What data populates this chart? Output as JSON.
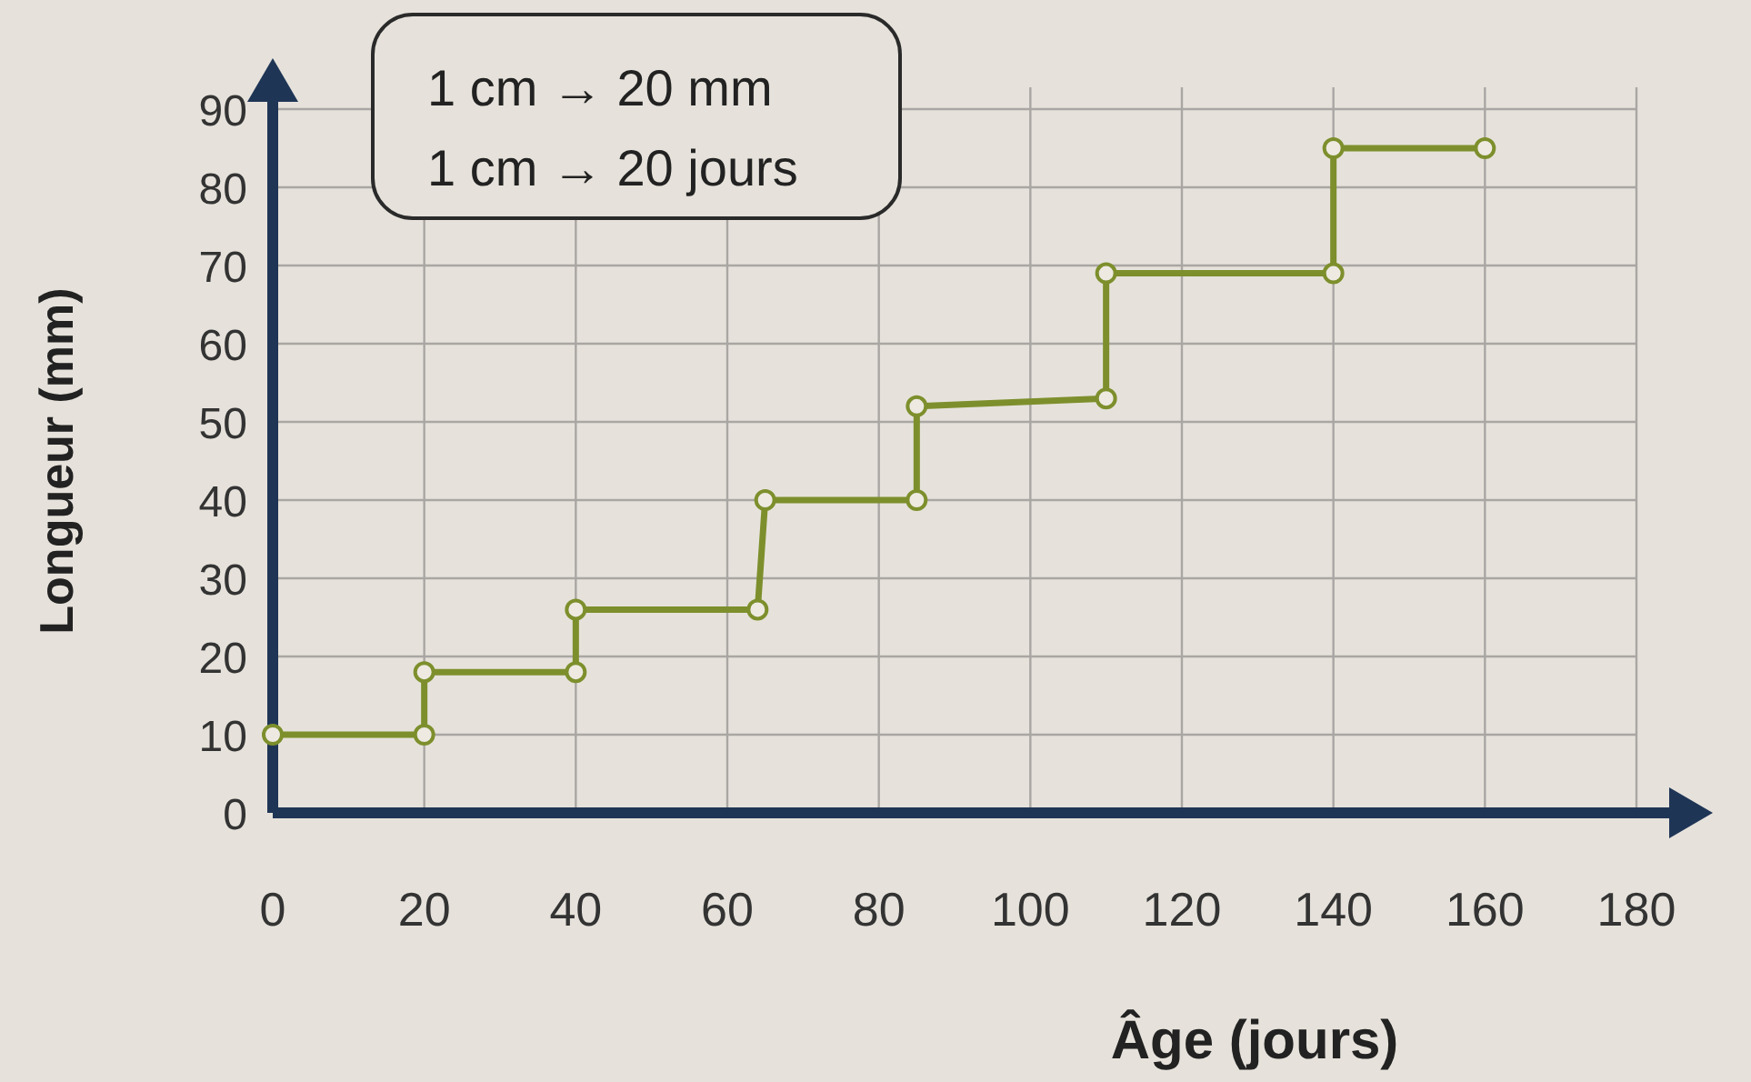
{
  "chart_data": {
    "type": "line",
    "xlabel": "Âge (jours)",
    "ylabel": "Longueur (mm)",
    "annotations": [
      "1 cm → 20 mm",
      "1 cm → 20 jours"
    ],
    "xlim": [
      0,
      180
    ],
    "xticks": [
      0,
      20,
      40,
      60,
      80,
      100,
      120,
      140,
      160,
      180
    ],
    "ylim": [
      0,
      90
    ],
    "yticks": [
      0,
      10,
      20,
      30,
      40,
      50,
      60,
      70,
      80,
      90
    ],
    "grid": true,
    "marker": "circle",
    "line_style": "solid",
    "series": [
      {
        "color": "#7d8f2c",
        "x": [
          0,
          20,
          20,
          40,
          40,
          64,
          65,
          85,
          85,
          110,
          110,
          140,
          140,
          160
        ],
        "values": [
          10,
          10,
          18,
          18,
          26,
          26,
          40,
          40,
          52,
          53,
          69,
          69,
          85,
          85
        ]
      }
    ]
  }
}
